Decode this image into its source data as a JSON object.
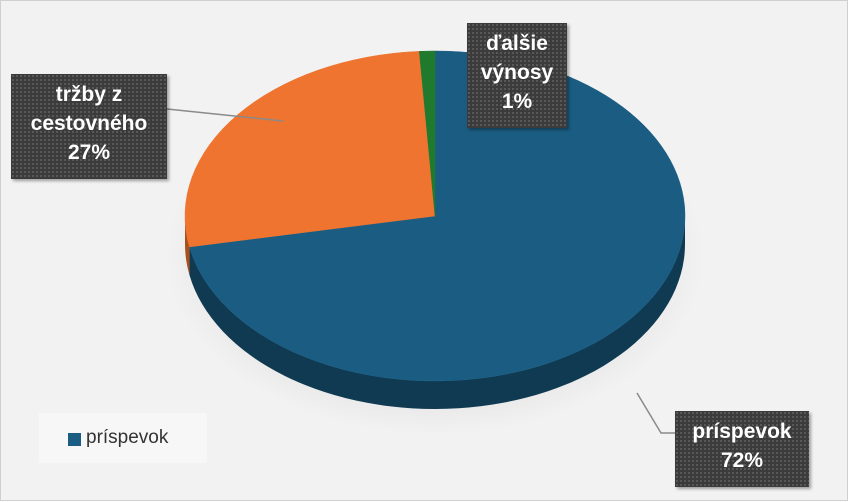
{
  "chart_data": {
    "type": "pie",
    "slices": [
      {
        "label": "príspevok",
        "value": 72,
        "percent_label": "72%",
        "color": "#1b5d82",
        "side_color": "#0f3a52"
      },
      {
        "label": "tržby z cestovného",
        "value": 27,
        "percent_label": "27%",
        "color": "#ee7430",
        "side_color": "#a94f1c"
      },
      {
        "label": "ďalšie výnosy",
        "value": 1,
        "percent_label": "1%",
        "color": "#1f7a2e",
        "side_color": "#14501e"
      }
    ],
    "legend": {
      "position": "bottom-left",
      "entries": [
        {
          "label": "príspevok",
          "color": "#1b5d82"
        }
      ]
    },
    "data_labels": {
      "prispevok": {
        "line1": "príspevok",
        "line2": "72%"
      },
      "trzby": {
        "line1": "tržby z",
        "line2": "cestovného",
        "line3": "27%"
      },
      "dalsie": {
        "line1": "ďalšie",
        "line2": "výnosy",
        "line3": "1%"
      }
    }
  }
}
